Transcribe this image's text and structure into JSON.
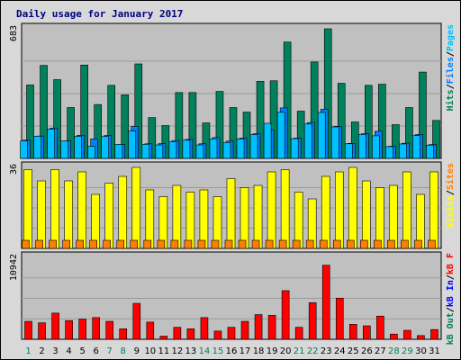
{
  "title": "Daily usage for January 2017",
  "colors": {
    "hits": "#00805c",
    "files": "#0080ff",
    "pages": "#00c0ff",
    "visits": "#ffff00",
    "sites": "#ff8000",
    "kbin": "#ff0000",
    "kbout": "#0000ff",
    "weekday": "#000000",
    "weekend": "#00805c",
    "panel": "#c0c0c0",
    "outer": "#d8d8d8"
  },
  "chart_data": [
    {
      "type": "bar",
      "name_panel": "hits-files-pages",
      "ymax_label": "683",
      "ylim": [
        0,
        683
      ],
      "legend": [
        {
          "text": "Hits",
          "color": "#00805c"
        },
        {
          "text": "/",
          "color": "#000000"
        },
        {
          "text": "Files",
          "color": "#0080ff"
        },
        {
          "text": "/",
          "color": "#000000"
        },
        {
          "text": "Pages",
          "color": "#00c0ff"
        }
      ],
      "categories": [
        "1",
        "2",
        "3",
        "4",
        "5",
        "6",
        "7",
        "8",
        "9",
        "10",
        "11",
        "12",
        "13",
        "14",
        "15",
        "16",
        "17",
        "18",
        "19",
        "20",
        "21",
        "22",
        "23",
        "24",
        "25",
        "26",
        "27",
        "28",
        "29",
        "30",
        "31"
      ],
      "series": [
        {
          "name": "Hits",
          "values": [
            387,
            490,
            415,
            268,
            492,
            284,
            385,
            335,
            498,
            215,
            173,
            347,
            347,
            187,
            353,
            268,
            244,
            406,
            409,
            613,
            249,
            508,
            683,
            396,
            192,
            385,
            391,
            178,
            268,
            455,
            200
          ]
        },
        {
          "name": "Files",
          "values": [
            96,
            118,
            160,
            92,
            122,
            103,
            121,
            74,
            169,
            77,
            78,
            94,
            100,
            77,
            110,
            91,
            107,
            130,
            151,
            266,
            107,
            189,
            259,
            169,
            79,
            130,
            143,
            64,
            80,
            126,
            73
          ]
        },
        {
          "name": "Pages",
          "values": [
            92,
            117,
            154,
            92,
            117,
            64,
            115,
            74,
            144,
            74,
            71,
            88,
            96,
            71,
            103,
            83,
            103,
            125,
            185,
            243,
            104,
            181,
            242,
            166,
            77,
            126,
            119,
            62,
            76,
            120,
            70
          ]
        }
      ]
    },
    {
      "type": "bar",
      "name_panel": "visits-sites",
      "ymax_label": "36",
      "ylim": [
        0,
        36
      ],
      "legend": [
        {
          "text": "Visits",
          "color": "#ffff00"
        },
        {
          "text": "/",
          "color": "#000000"
        },
        {
          "text": "Sites",
          "color": "#ff8000"
        }
      ],
      "categories": [
        "1",
        "2",
        "3",
        "4",
        "5",
        "6",
        "7",
        "8",
        "9",
        "10",
        "11",
        "12",
        "13",
        "14",
        "15",
        "16",
        "17",
        "18",
        "19",
        "20",
        "21",
        "22",
        "23",
        "24",
        "25",
        "26",
        "27",
        "28",
        "29",
        "30",
        "31"
      ],
      "series": [
        {
          "name": "Visits",
          "values": [
            35,
            30,
            35,
            30,
            34,
            24,
            29,
            32,
            36,
            26,
            23,
            28,
            25,
            26,
            23,
            31,
            27,
            28,
            34,
            35,
            25,
            22,
            32,
            34,
            36,
            30,
            27,
            28,
            34,
            24,
            34
          ]
        },
        {
          "name": "Sites",
          "values": [
            2,
            2,
            2,
            2,
            2,
            2,
            2,
            2,
            2,
            2,
            2,
            2,
            2,
            2,
            2,
            2,
            2,
            2,
            2,
            2,
            2,
            2,
            2,
            2,
            2,
            2,
            2,
            2,
            2,
            2,
            2
          ]
        }
      ]
    },
    {
      "type": "bar",
      "name_panel": "kbytes",
      "ymax_label": "10942",
      "ylim": [
        0,
        10942
      ],
      "legend": [
        {
          "text": "kB Out",
          "color": "#00805c"
        },
        {
          "text": "/",
          "color": "#000000"
        },
        {
          "text": "kB In",
          "color": "#0000ff"
        },
        {
          "text": "/",
          "color": "#000000"
        },
        {
          "text": "kB F",
          "color": "#ff0000"
        }
      ],
      "categories": [
        "1",
        "2",
        "3",
        "4",
        "5",
        "6",
        "7",
        "8",
        "9",
        "10",
        "11",
        "12",
        "13",
        "14",
        "15",
        "16",
        "17",
        "18",
        "19",
        "20",
        "21",
        "22",
        "23",
        "24",
        "25",
        "26",
        "27",
        "28",
        "29",
        "30",
        "31"
      ],
      "series": [
        {
          "name": "kB F",
          "values": [
            2400,
            2200,
            3500,
            2500,
            2700,
            2900,
            2400,
            1400,
            4800,
            2300,
            420,
            1600,
            1400,
            2900,
            1100,
            1600,
            2400,
            3300,
            3200,
            6500,
            1600,
            4900,
            9900,
            5500,
            2000,
            1800,
            3100,
            700,
            1200,
            500,
            1300
          ]
        }
      ]
    }
  ],
  "days": [
    {
      "label": "1",
      "weekend": true
    },
    {
      "label": "2",
      "weekend": false
    },
    {
      "label": "3",
      "weekend": false
    },
    {
      "label": "4",
      "weekend": false
    },
    {
      "label": "5",
      "weekend": false
    },
    {
      "label": "6",
      "weekend": false
    },
    {
      "label": "7",
      "weekend": true
    },
    {
      "label": "8",
      "weekend": true
    },
    {
      "label": "9",
      "weekend": false
    },
    {
      "label": "10",
      "weekend": false
    },
    {
      "label": "11",
      "weekend": false
    },
    {
      "label": "12",
      "weekend": false
    },
    {
      "label": "13",
      "weekend": false
    },
    {
      "label": "14",
      "weekend": true
    },
    {
      "label": "15",
      "weekend": true
    },
    {
      "label": "16",
      "weekend": false
    },
    {
      "label": "17",
      "weekend": false
    },
    {
      "label": "18",
      "weekend": false
    },
    {
      "label": "19",
      "weekend": false
    },
    {
      "label": "20",
      "weekend": false
    },
    {
      "label": "21",
      "weekend": true
    },
    {
      "label": "22",
      "weekend": true
    },
    {
      "label": "23",
      "weekend": false
    },
    {
      "label": "24",
      "weekend": false
    },
    {
      "label": "25",
      "weekend": false
    },
    {
      "label": "26",
      "weekend": false
    },
    {
      "label": "27",
      "weekend": false
    },
    {
      "label": "28",
      "weekend": true
    },
    {
      "label": "29",
      "weekend": true
    },
    {
      "label": "30",
      "weekend": false
    },
    {
      "label": "31",
      "weekend": false
    }
  ]
}
